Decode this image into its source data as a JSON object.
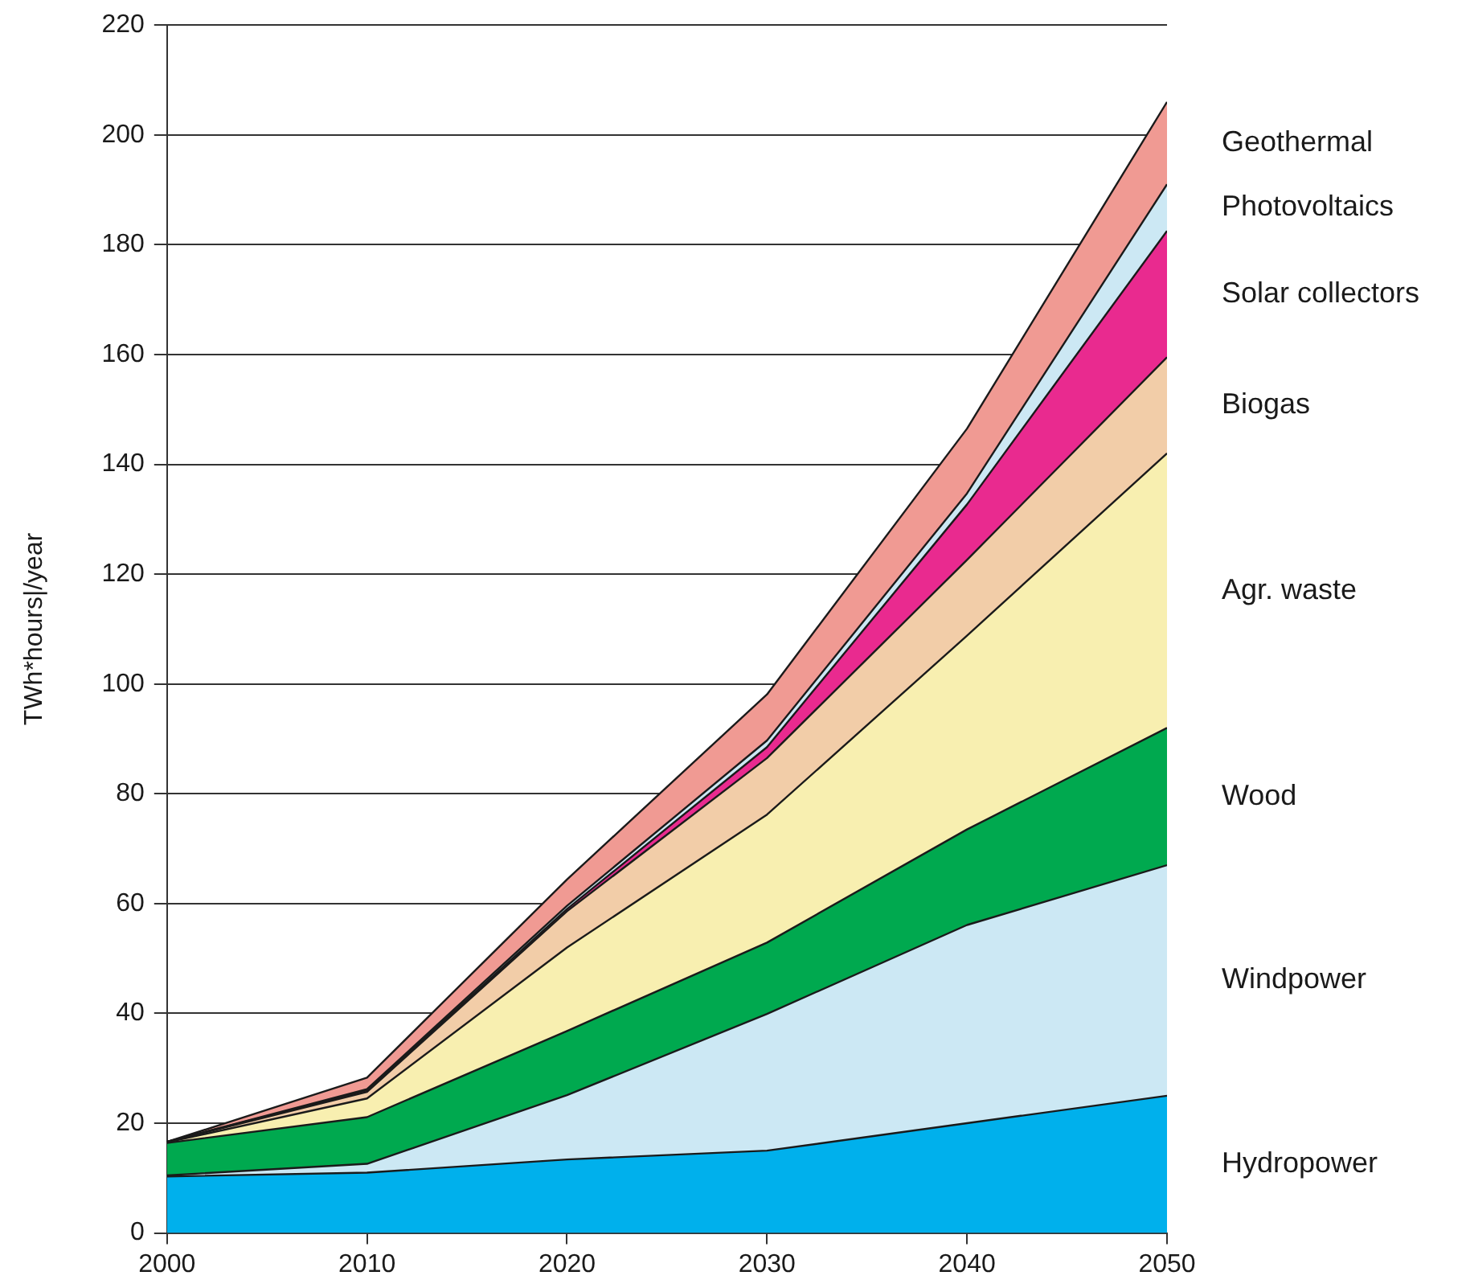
{
  "chart_data": {
    "type": "area",
    "stacked": true,
    "ylabel": "TWh*hours|/year",
    "x": [
      2000,
      2010,
      2020,
      2030,
      2040,
      2050
    ],
    "xlim": [
      2000,
      2050
    ],
    "xticks": [
      2000,
      2010,
      2020,
      2030,
      2040,
      2050
    ],
    "ylim": [
      0,
      220
    ],
    "yticks": [
      0,
      20,
      40,
      60,
      80,
      100,
      120,
      140,
      160,
      180,
      200,
      220
    ],
    "grid": "y",
    "legend": false,
    "series": [
      {
        "name": "Hydropower",
        "color": "#00b0ec",
        "values": [
          10.3,
          11,
          13.4,
          15,
          20,
          25
        ]
      },
      {
        "name": "Windpower",
        "color": "#cce8f4",
        "values": [
          0.2,
          1.6,
          11.7,
          24.9,
          36.1,
          42
        ]
      },
      {
        "name": "Wood",
        "color": "#00a94f",
        "values": [
          5.9,
          8.5,
          11.7,
          13,
          17.4,
          25
        ]
      },
      {
        "name": "Agr. waste",
        "color": "#f8efb0",
        "values": [
          0.1,
          3.4,
          15.2,
          23.3,
          35.3,
          50
        ]
      },
      {
        "name": "Biogas",
        "color": "#f2cda8",
        "values": [
          0.1,
          1.2,
          6.6,
          10.3,
          13.8,
          17.5
        ]
      },
      {
        "name": "Solar collectors",
        "color": "#e92a8f",
        "values": [
          0,
          0.3,
          0.4,
          2,
          10.1,
          23
        ]
      },
      {
        "name": "Photovoltaics",
        "color": "#cce8f4",
        "values": [
          0,
          0.2,
          0.6,
          1.2,
          2,
          8.5
        ]
      },
      {
        "name": "Geothermal",
        "color": "#f09a93",
        "values": [
          0,
          2.1,
          4.8,
          8.4,
          11.8,
          15
        ]
      }
    ]
  }
}
